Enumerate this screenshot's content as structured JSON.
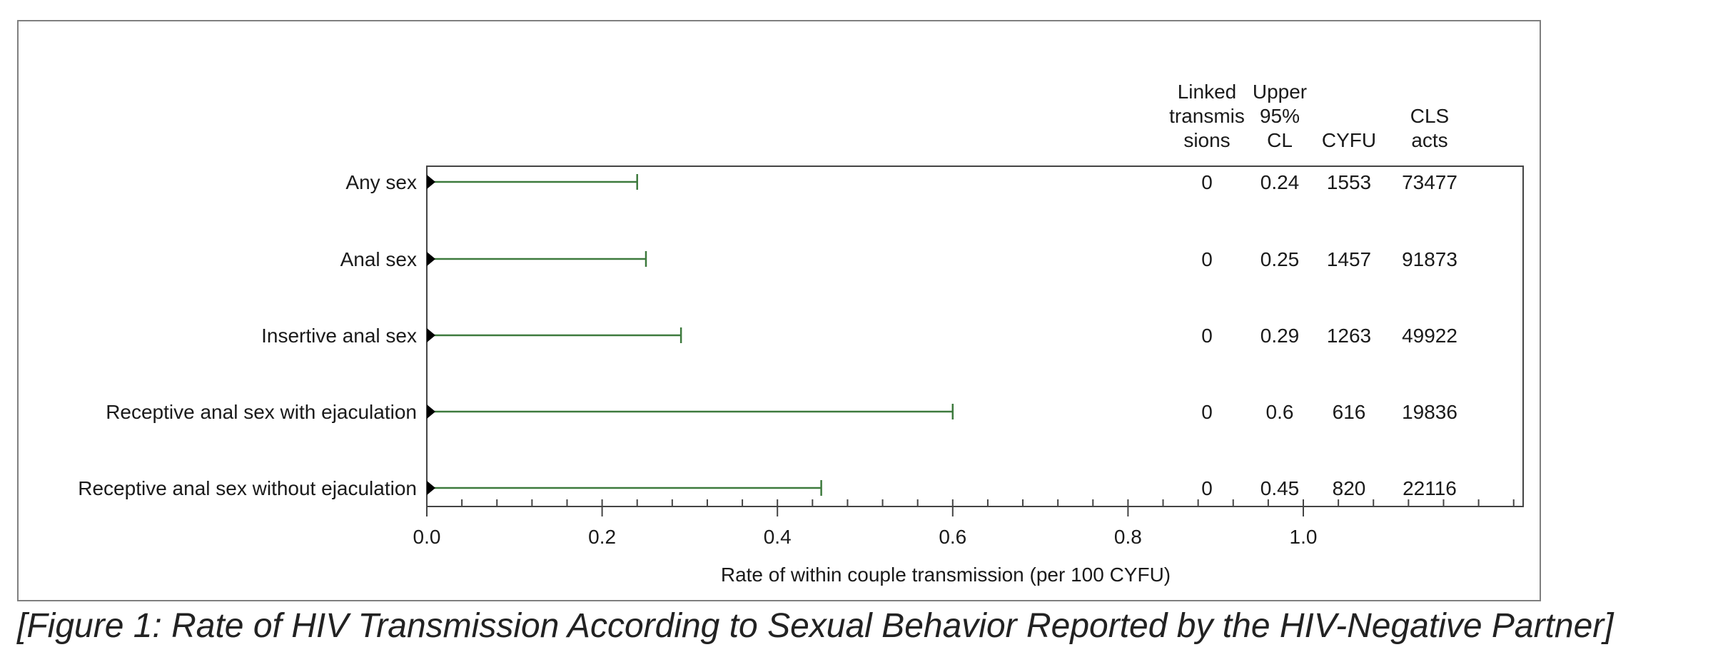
{
  "caption": "[Figure 1: Rate of HIV Transmission According to Sexual Behavior Reported by the HIV-Negative Partner]",
  "chart_data": {
    "type": "forest",
    "xlabel": "Rate of within couple transmission (per 100 CYFU)",
    "xlim": [
      0,
      1.25
    ],
    "xticks": [
      "0.0",
      "0.2",
      "0.4",
      "0.6",
      "0.8",
      "1.0"
    ],
    "xtick_values": [
      0,
      0.2,
      0.4,
      0.6,
      0.8,
      1.0
    ],
    "minor_tick_step": 0.04,
    "colors": {
      "ci_line": "#3d7a3d",
      "marker": "#000000",
      "axis": "#444444"
    },
    "table_headers": [
      {
        "key": "linked",
        "lines": [
          "Linked",
          "transmis",
          "sions"
        ]
      },
      {
        "key": "upper",
        "lines": [
          "Upper",
          "95%",
          "CL"
        ]
      },
      {
        "key": "cyfu",
        "lines": [
          "CYFU"
        ]
      },
      {
        "key": "cls",
        "lines": [
          "CLS",
          "acts"
        ]
      }
    ],
    "rows": [
      {
        "label": "Any sex",
        "point": 0,
        "upper": 0.24,
        "linked": "0",
        "upper_text": "0.24",
        "cyfu": "1553",
        "cls": "73477"
      },
      {
        "label": "Anal sex",
        "point": 0,
        "upper": 0.25,
        "linked": "0",
        "upper_text": "0.25",
        "cyfu": "1457",
        "cls": "91873"
      },
      {
        "label": "Insertive anal sex",
        "point": 0,
        "upper": 0.29,
        "linked": "0",
        "upper_text": "0.29",
        "cyfu": "1263",
        "cls": "49922"
      },
      {
        "label": "Receptive anal sex with ejaculation",
        "point": 0,
        "upper": 0.6,
        "linked": "0",
        "upper_text": "0.6",
        "cyfu": "616",
        "cls": "19836"
      },
      {
        "label": "Receptive anal sex without ejaculation",
        "point": 0,
        "upper": 0.45,
        "linked": "0",
        "upper_text": "0.45",
        "cyfu": "820",
        "cls": "22116"
      }
    ]
  }
}
